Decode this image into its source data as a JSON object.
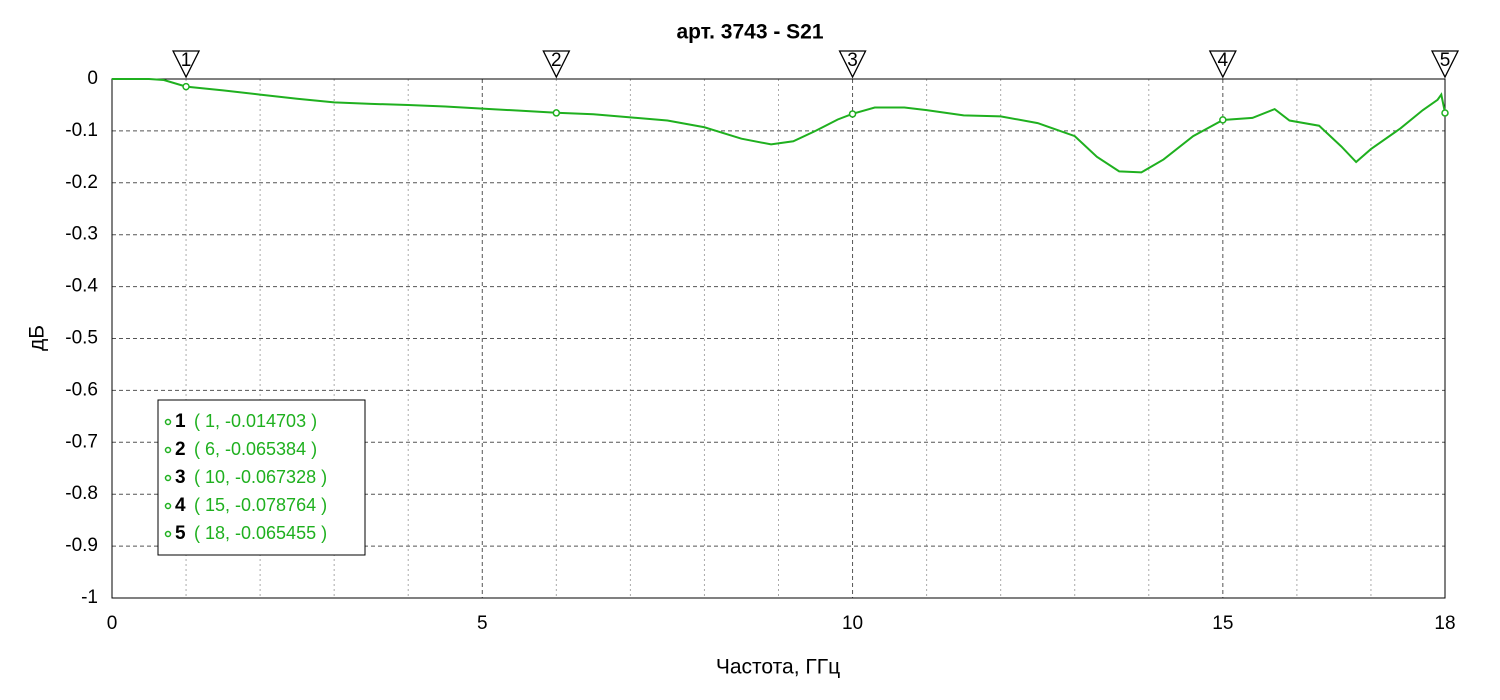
{
  "chart_data": {
    "type": "line",
    "title": "арт. 3743 - S21",
    "xlabel": "Частота, ГГц",
    "ylabel": "дБ",
    "xlim": [
      0,
      18
    ],
    "ylim": [
      -1,
      0
    ],
    "xticks": [
      0,
      5,
      10,
      15,
      18
    ],
    "xminor": [
      1,
      2,
      3,
      4,
      6,
      7,
      8,
      9,
      11,
      12,
      13,
      14,
      16,
      17
    ],
    "yticks": [
      0,
      -0.1,
      -0.2,
      -0.3,
      -0.4,
      -0.5,
      -0.6,
      -0.7,
      -0.8,
      -0.9,
      -1
    ],
    "grid": true,
    "series": [
      {
        "color": "#1fb01f",
        "x": [
          0,
          0.5,
          0.7,
          1,
          1.5,
          2,
          2.5,
          3,
          3.5,
          4,
          4.5,
          5,
          5.5,
          6,
          6.5,
          7,
          7.5,
          8,
          8.5,
          8.9,
          9.2,
          9.5,
          9.8,
          10,
          10.3,
          10.7,
          11,
          11.5,
          12,
          12.5,
          13,
          13.3,
          13.6,
          13.9,
          14.2,
          14.6,
          15,
          15.4,
          15.7,
          15.9,
          16.3,
          16.6,
          16.8,
          17,
          17.4,
          17.7,
          17.9,
          17.95,
          18
        ],
        "values": [
          0,
          0,
          -0.002,
          -0.0147,
          -0.022,
          -0.03,
          -0.038,
          -0.045,
          -0.048,
          -0.05,
          -0.053,
          -0.057,
          -0.061,
          -0.065,
          -0.068,
          -0.074,
          -0.08,
          -0.093,
          -0.115,
          -0.126,
          -0.12,
          -0.1,
          -0.078,
          -0.067,
          -0.055,
          -0.055,
          -0.06,
          -0.07,
          -0.072,
          -0.085,
          -0.11,
          -0.15,
          -0.178,
          -0.18,
          -0.155,
          -0.11,
          -0.079,
          -0.075,
          -0.058,
          -0.08,
          -0.09,
          -0.13,
          -0.16,
          -0.135,
          -0.095,
          -0.06,
          -0.04,
          -0.03,
          -0.065
        ]
      }
    ],
    "markers": [
      {
        "label": "1",
        "x": 1,
        "y": -0.014703,
        "text": "( 1, -0.014703 )"
      },
      {
        "label": "2",
        "x": 6,
        "y": -0.065384,
        "text": "( 6, -0.065384 )"
      },
      {
        "label": "3",
        "x": 10,
        "y": -0.067328,
        "text": "( 10, -0.067328 )"
      },
      {
        "label": "4",
        "x": 15,
        "y": -0.078764,
        "text": "( 15, -0.078764 )"
      },
      {
        "label": "5",
        "x": 18,
        "y": -0.065455,
        "text": "( 18, -0.065455 )"
      }
    ]
  }
}
